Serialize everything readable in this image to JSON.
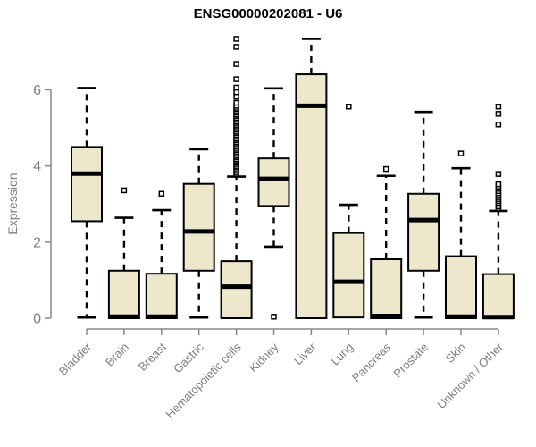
{
  "title": "ENSG00000202081 - U6",
  "ylabel": "Expression",
  "colors": {
    "box_fill": "#EDE8CC",
    "box_stroke": "#000000",
    "axis": "#898989",
    "tick_label": "#7e7e7e",
    "title": "#000000",
    "background": "#ffffff"
  },
  "chart_data": {
    "type": "boxplot",
    "title": "ENSG00000202081 - U6",
    "xlabel": "",
    "ylabel": "Expression",
    "yticks": [
      0,
      2,
      4,
      6
    ],
    "ylim": [
      0,
      7.4
    ],
    "grid": false,
    "legend": false,
    "categories": [
      "Bladder",
      "Brain",
      "Breast",
      "Gastric",
      "Hematopoietic cells",
      "Kidney",
      "Liver",
      "Lung",
      "Pancreas",
      "Prostate",
      "Skin",
      "Unknown / Other"
    ],
    "boxes": [
      {
        "category": "Bladder",
        "low": 0.02,
        "q1": 2.55,
        "median": 3.8,
        "q3": 4.5,
        "high": 6.05,
        "outliers": []
      },
      {
        "category": "Brain",
        "low": 0,
        "q1": 0,
        "median": 0.04,
        "q3": 1.25,
        "high": 2.64,
        "outliers": [
          3.36
        ]
      },
      {
        "category": "Breast",
        "low": 0,
        "q1": 0,
        "median": 0.04,
        "q3": 1.17,
        "high": 2.84,
        "outliers": [
          3.27
        ]
      },
      {
        "category": "Gastric",
        "low": 0.02,
        "q1": 1.25,
        "median": 2.28,
        "q3": 3.53,
        "high": 4.44,
        "outliers": []
      },
      {
        "category": "Hematopoietic cells",
        "low": 0,
        "q1": 0,
        "median": 0.83,
        "q3": 1.5,
        "high": 3.72,
        "outliers": [
          3.78,
          3.82,
          3.87,
          3.91,
          3.96,
          4.0,
          4.05,
          4.09,
          4.14,
          4.18,
          4.23,
          4.27,
          4.32,
          4.36,
          4.41,
          4.45,
          4.5,
          4.54,
          4.59,
          4.63,
          4.68,
          4.72,
          4.77,
          4.81,
          4.86,
          4.9,
          4.95,
          4.99,
          5.04,
          5.08,
          5.13,
          5.17,
          5.22,
          5.26,
          5.31,
          5.35,
          5.4,
          5.44,
          5.49,
          5.53,
          5.58,
          5.66,
          5.82,
          5.94,
          6.06,
          6.28,
          6.68,
          7.13,
          7.34
        ]
      },
      {
        "category": "Kidney",
        "low": 1.88,
        "q1": 2.95,
        "median": 3.66,
        "q3": 4.2,
        "high": 6.04,
        "outliers": [
          0.04
        ]
      },
      {
        "category": "Liver",
        "low": 0,
        "q1": 0,
        "median": 5.58,
        "q3": 6.41,
        "high": 7.34,
        "outliers": []
      },
      {
        "category": "Lung",
        "low": 0.02,
        "q1": 0.02,
        "median": 0.96,
        "q3": 2.24,
        "high": 2.98,
        "outliers": [
          5.56
        ]
      },
      {
        "category": "Pancreas",
        "low": 0,
        "q1": 0,
        "median": 0.06,
        "q3": 1.55,
        "high": 3.74,
        "outliers": [
          3.92
        ]
      },
      {
        "category": "Prostate",
        "low": 0.02,
        "q1": 1.25,
        "median": 2.58,
        "q3": 3.27,
        "high": 5.42,
        "outliers": []
      },
      {
        "category": "Skin",
        "low": 0,
        "q1": 0,
        "median": 0.04,
        "q3": 1.63,
        "high": 3.94,
        "outliers": [
          4.33
        ]
      },
      {
        "category": "Unknown / Other",
        "low": 0,
        "q1": 0,
        "median": 0.03,
        "q3": 1.16,
        "high": 2.82,
        "outliers": [
          2.88,
          2.93,
          2.98,
          3.03,
          3.08,
          3.13,
          3.18,
          3.23,
          3.28,
          3.34,
          3.4,
          3.46,
          3.52,
          3.79,
          5.09,
          5.37,
          5.56
        ]
      }
    ]
  }
}
